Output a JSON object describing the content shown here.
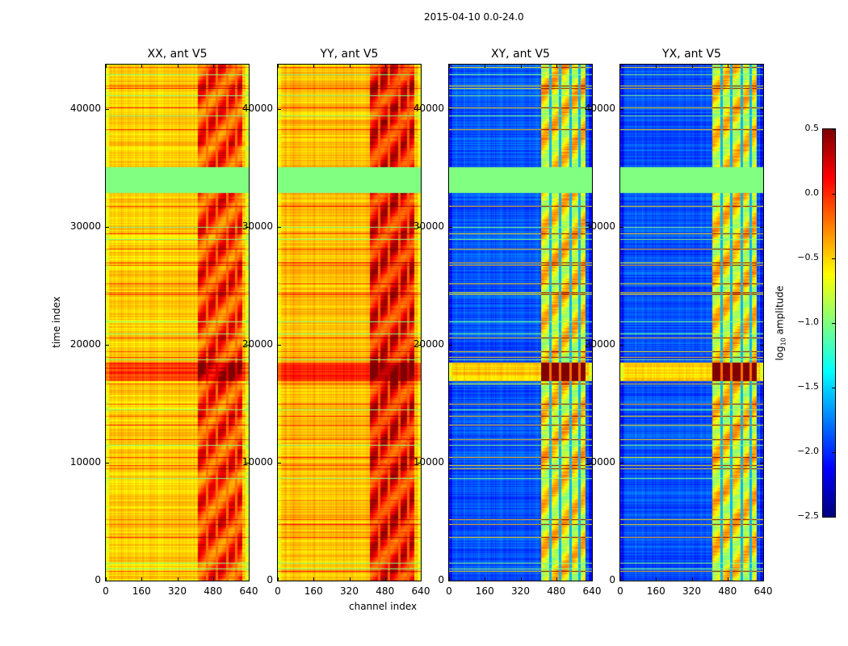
{
  "suptitle": "2015-04-10 0.0-24.0",
  "xlabel": "channel index",
  "ylabel": "time index",
  "colorbar": {
    "label_main": "log",
    "label_sub": "10",
    "label_rest": " amplitude",
    "range": [
      -2.5,
      0.5
    ],
    "ticks": [
      "0.5",
      "0.0",
      "−0.5",
      "−1.0",
      "−1.5",
      "−2.0",
      "−2.5"
    ],
    "tick_values": [
      0.5,
      0.0,
      -0.5,
      -1.0,
      -1.5,
      -2.0,
      -2.5
    ],
    "colormap": "jet"
  },
  "chart_data": {
    "type": "heatmap",
    "title": "2015-04-10 0.0-24.0",
    "xlabel": "channel index",
    "ylabel": "time index",
    "xlim": [
      0,
      640
    ],
    "ylim": [
      0,
      43800
    ],
    "x_ticks": [
      "0",
      "160",
      "320",
      "480",
      "640"
    ],
    "x_tick_values": [
      0,
      160,
      320,
      480,
      640
    ],
    "y_ticks": [
      "0",
      "10000",
      "20000",
      "30000",
      "40000"
    ],
    "y_tick_values": [
      0,
      10000,
      20000,
      30000,
      40000
    ],
    "flagged_rows": [
      33000,
      35100
    ],
    "flag_value": -1.0,
    "hot_channels": [
      410,
      610
    ],
    "panels": [
      {
        "title": "XX, ant V5",
        "base": -0.5,
        "hot": -0.05,
        "line_delta": 0.45
      },
      {
        "title": "YY, ant V5",
        "base": -0.45,
        "hot": 0.1,
        "line_delta": 0.45
      },
      {
        "title": "XY, ant V5",
        "base": -1.9,
        "hot": -0.6,
        "line_delta": 1.4
      },
      {
        "title": "YX, ant V5",
        "base": -1.9,
        "hot": -0.6,
        "line_delta": 1.4
      }
    ],
    "bright_rows": [
      43600,
      42000,
      41800,
      40200,
      38300,
      31800,
      29500,
      28200,
      27000,
      26800,
      25200,
      24500,
      24300,
      20600,
      19500,
      19000,
      16700,
      15000,
      14000,
      13200,
      12000,
      10500,
      9800,
      9500,
      5200,
      4800,
      3700,
      800
    ],
    "bright_bands": [
      [
        17000,
        18500
      ]
    ],
    "green_rows": [
      43000,
      41200,
      39500,
      30000,
      29000,
      22000,
      21000,
      18800,
      14500,
      11500,
      8700,
      1500,
      1000
    ]
  }
}
